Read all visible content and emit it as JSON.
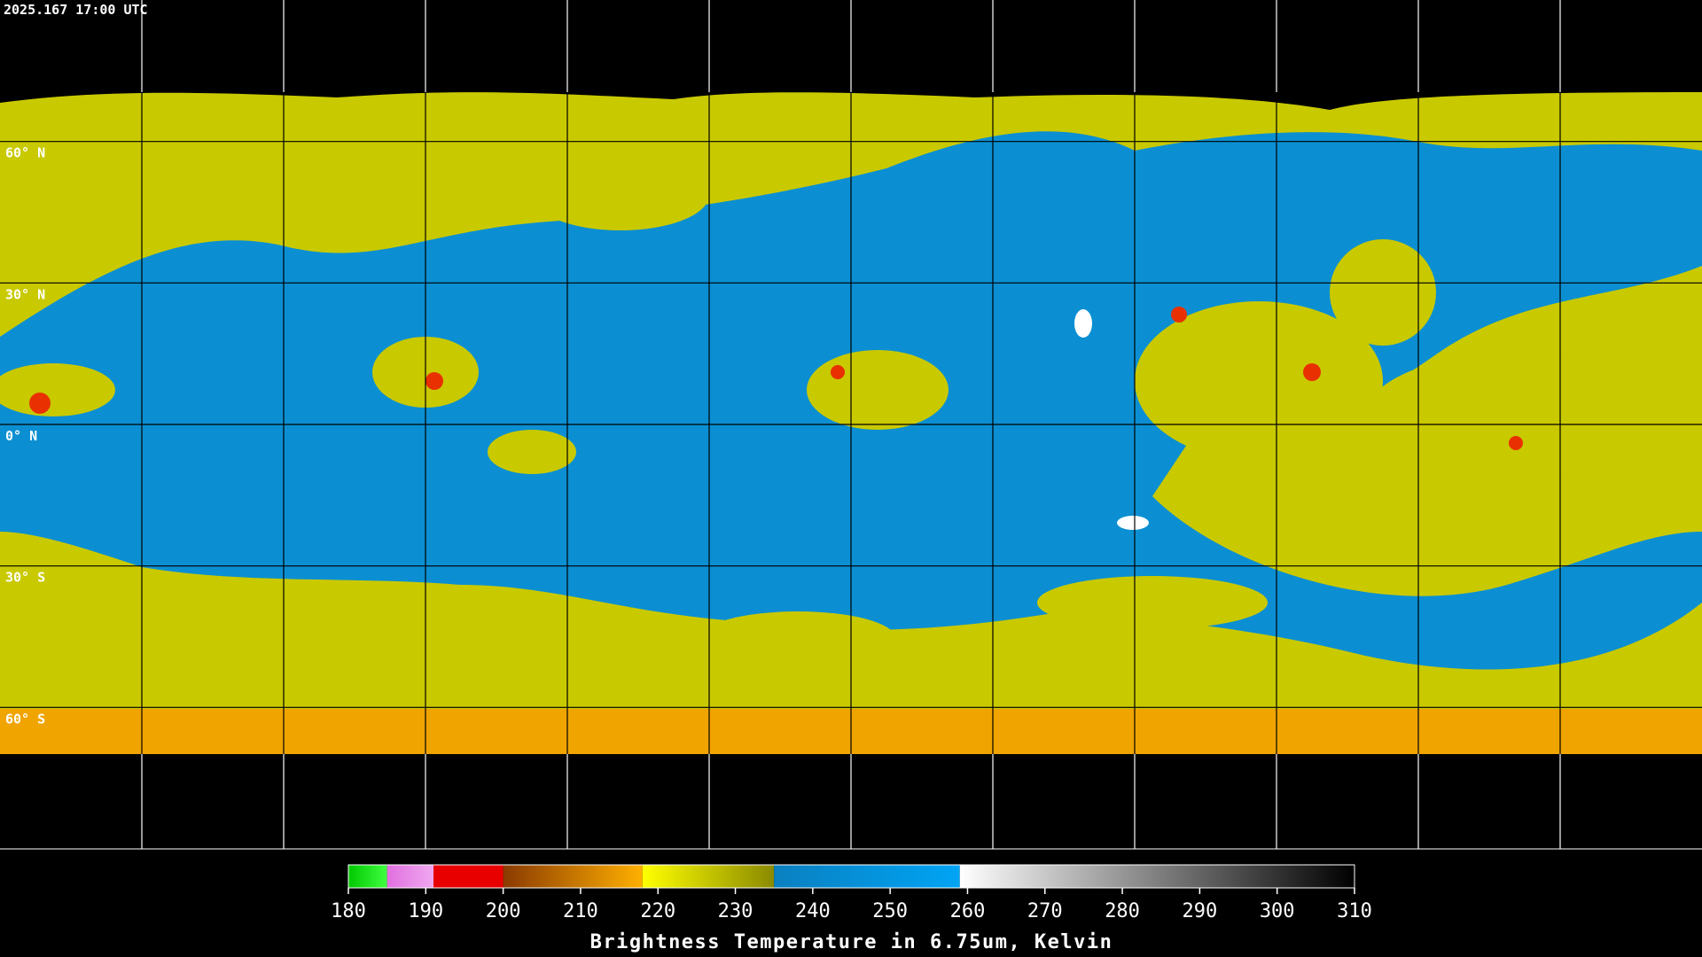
{
  "timestamp": "2025.167 17:00 UTC",
  "map": {
    "lat_lines": [
      {
        "lat": 60,
        "label": "60° N"
      },
      {
        "lat": 30,
        "label": "30° N"
      },
      {
        "lat": 0,
        "label": "0° N"
      },
      {
        "lat": -30,
        "label": "30° S"
      },
      {
        "lat": -60,
        "label": "60° S"
      }
    ],
    "lon_lines": [
      -150,
      -120,
      -90,
      -60,
      -30,
      0,
      30,
      60,
      90,
      120,
      150
    ]
  },
  "colorbar": {
    "title": "Brightness Temperature in 6.75um, Kelvin",
    "range": [
      180,
      310
    ],
    "ticks": [
      180,
      190,
      200,
      210,
      220,
      230,
      240,
      250,
      260,
      270,
      280,
      290,
      300,
      310
    ],
    "segments": [
      {
        "from": 180,
        "to": 185,
        "colors": [
          "#00c800",
          "#40ff40"
        ]
      },
      {
        "from": 185,
        "to": 191,
        "colors": [
          "#e070e0",
          "#f0a8f0"
        ]
      },
      {
        "from": 191,
        "to": 200,
        "colors": [
          "#e80000",
          "#e80000"
        ]
      },
      {
        "from": 200,
        "to": 218,
        "colors": [
          "#8a3a00",
          "#ffb000"
        ]
      },
      {
        "from": 218,
        "to": 235,
        "colors": [
          "#ffff00",
          "#8a8a00"
        ]
      },
      {
        "from": 235,
        "to": 259,
        "colors": [
          "#0a80c0",
          "#00a4f4"
        ]
      },
      {
        "from": 259,
        "to": 310,
        "colors": [
          "#ffffff",
          "#000000"
        ]
      }
    ]
  }
}
